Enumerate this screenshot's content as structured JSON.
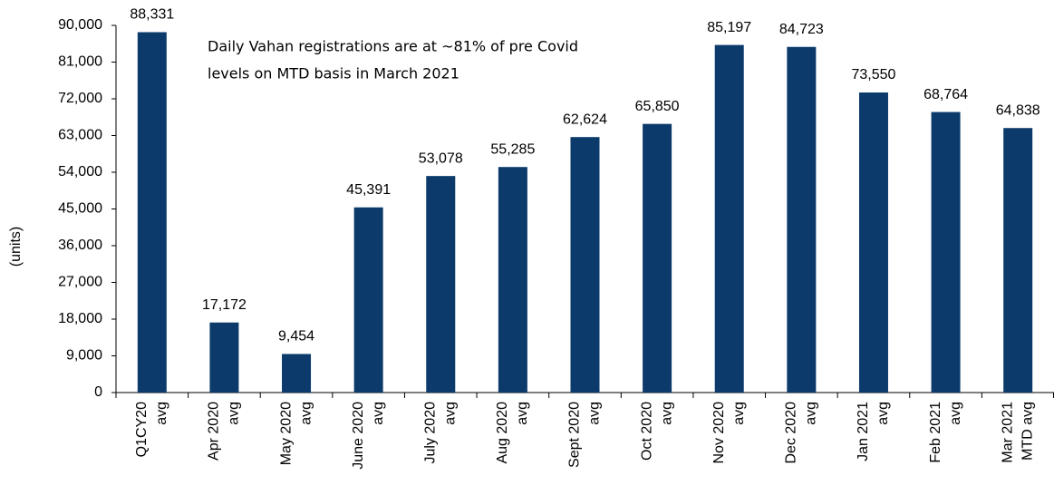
{
  "chart_data": {
    "type": "bar",
    "y_label": "(units)",
    "annotation": [
      "Daily Vahan registrations are at ~81% of pre Covid",
      "levels on MTD basis in March 2021"
    ],
    "categories": [
      [
        "Q1CY20",
        "avg"
      ],
      [
        "Apr 2020",
        "avg"
      ],
      [
        "May 2020",
        "avg"
      ],
      [
        "June 2020",
        "avg"
      ],
      [
        "July 2020",
        "avg"
      ],
      [
        "Aug 2020",
        "avg"
      ],
      [
        "Sept 2020",
        "avg"
      ],
      [
        "Oct 2020",
        "avg"
      ],
      [
        "Nov 2020",
        "avg"
      ],
      [
        "Dec 2020",
        "avg"
      ],
      [
        "Jan 2021",
        "avg"
      ],
      [
        "Feb 2021",
        "avg"
      ],
      [
        "Mar 2021",
        "MTD avg"
      ]
    ],
    "values": [
      88331,
      17172,
      9454,
      45391,
      53078,
      55285,
      62624,
      65850,
      85197,
      84723,
      73550,
      68764,
      64838
    ],
    "value_labels": [
      "88,331",
      "17,172",
      "9,454",
      "45,391",
      "53,078",
      "55,285",
      "62,624",
      "65,850",
      "85,197",
      "84,723",
      "73,550",
      "68,764",
      "64,838"
    ],
    "color": "#0b3a6b",
    "ylim": [
      0,
      90000
    ],
    "yticks": [
      0,
      {
        "value": 9000,
        "label": "9,000"
      },
      {
        "value": 18000,
        "label": "18,000"
      },
      {
        "value": 27000,
        "label": "27,000"
      },
      {
        "value": 36000,
        "label": "36,000"
      },
      {
        "value": 45000,
        "label": "45,000"
      },
      {
        "value": 54000,
        "label": "54,000"
      },
      {
        "value": 63000,
        "label": "63,000"
      },
      {
        "value": 72000,
        "label": "72,000"
      },
      {
        "value": 81000,
        "label": "81,000"
      },
      {
        "value": 90000,
        "label": "90,000"
      }
    ],
    "grid": false
  }
}
